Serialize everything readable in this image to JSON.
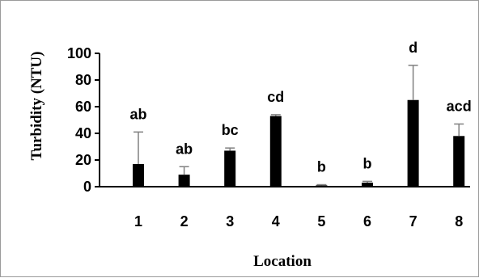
{
  "chart_data": {
    "type": "bar",
    "xlabel": "Location",
    "ylabel": "Turbidity (NTU)",
    "ylim": [
      0,
      100
    ],
    "yticks": [
      "0",
      "20",
      "40",
      "60",
      "80",
      "100"
    ],
    "categories": [
      "1",
      "2",
      "3",
      "4",
      "5",
      "6",
      "7",
      "8"
    ],
    "values": [
      17,
      9,
      27,
      53,
      1,
      3,
      65,
      38
    ],
    "error_upper": [
      41,
      15,
      29,
      54,
      1.5,
      4,
      91,
      47
    ],
    "significance_labels": [
      "ab",
      "ab",
      "bc",
      "cd",
      "b",
      "b",
      "d",
      "acd"
    ],
    "bar_color": "#000000",
    "grid": false,
    "legend": "none"
  }
}
